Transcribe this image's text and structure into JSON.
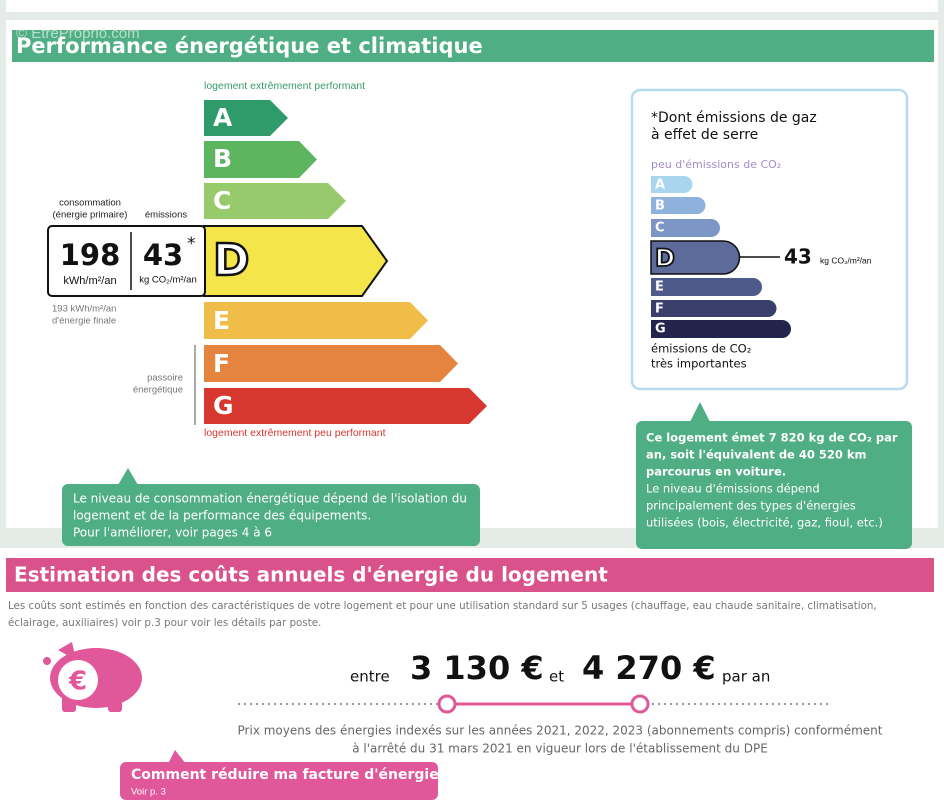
{
  "watermark": "© EtreProprio.com",
  "performance": {
    "title": "Performance énergétique et climatique",
    "energy_scale": {
      "top_label": "logement extrêmement performant",
      "bottom_label": "logement extrêmement peu performant",
      "classes": [
        "A",
        "B",
        "C",
        "D",
        "E",
        "F",
        "G"
      ]
    },
    "consumption_label": [
      "consommation",
      "(énergie primaire)"
    ],
    "emissions_label": "émissions",
    "consumption_value": 198,
    "consumption_unit": "kWh/m²/an",
    "emissions_value": 43,
    "emissions_asterisk": "*",
    "emissions_unit": "kg CO₂/m²/an",
    "final_energy": [
      "193 kWh/m²/an",
      "d'énergie finale"
    ],
    "passoire": [
      "passoire",
      "énergétique"
    ],
    "energy_note": [
      "Le niveau de consommation énergétique dépend de l'isolation du",
      "logement et de la performance des équipements.",
      "Pour l'améliorer, voir pages 4 à 6"
    ],
    "ghg_box": {
      "title": [
        "*Dont émissions de gaz",
        "à effet de serre"
      ],
      "top_label": "peu d'émissions de CO₂",
      "classes": [
        "A",
        "B",
        "C",
        "D",
        "E",
        "F",
        "G"
      ],
      "value": 43,
      "unit": "kg CO₂/m²/an",
      "bottom_label": [
        "émissions de CO₂",
        "très importantes"
      ]
    },
    "ghg_note": {
      "bold": [
        "Ce logement émet 7 820 kg de CO₂ par",
        "an, soit l'équivalent de 40 520 km",
        "parcourus en voiture."
      ],
      "normal": [
        "Le niveau d'émissions dépend",
        "principalement des types d'énergies",
        "utilisées (bois, électricité, gaz, fioul, etc.)"
      ]
    }
  },
  "costs": {
    "title": "Estimation des coûts annuels d'énergie du logement",
    "intro": [
      "Les coûts sont estimés en fonction des caractéristiques de votre logement et pour une utilisation standard sur 5 usages (chauffage, eau chaude sanitaire, climatisation,",
      "éclairage, auxiliaires) voir p.3 pour voir les détails par poste."
    ],
    "between": "entre",
    "low": "3 130 €",
    "and": "et",
    "high": "4 270 €",
    "per_year": "par an",
    "note": [
      "Prix moyens des énergies indexés sur les années 2021, 2022, 2023 (abonnements compris) conformément",
      "à l'arrêté du 31 mars 2021 en vigueur lors de l'établissement du DPE"
    ],
    "tip": {
      "title": "Comment réduire ma facture d'énergie ?",
      "link": "Voir p. 3"
    }
  }
}
